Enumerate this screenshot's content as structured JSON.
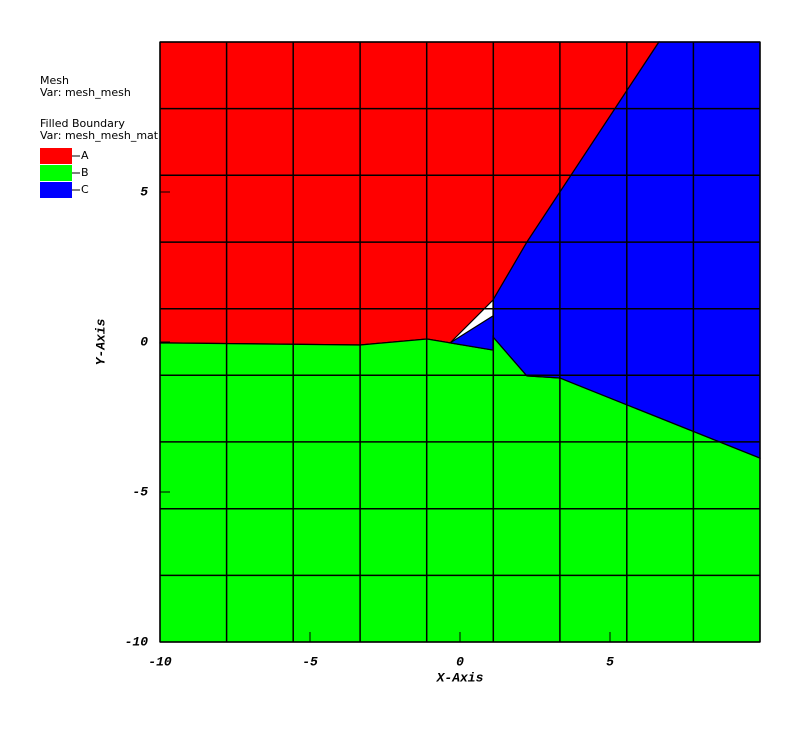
{
  "chart_data": {
    "type": "filled_boundary",
    "legend_title_1": "Mesh",
    "legend_var_1": "Var: mesh_mesh",
    "legend_title_2": "Filled Boundary",
    "legend_var_2": "Var: mesh_mesh_mat",
    "xlabel": "X-Axis",
    "ylabel": "Y-Axis",
    "xlim": [
      -10,
      10
    ],
    "ylim": [
      -10,
      10
    ],
    "xticks": [
      -10,
      -5,
      0,
      5
    ],
    "yticks": [
      -10,
      -5,
      0,
      5
    ],
    "mesh_x": [
      -10,
      -7.78,
      -5.56,
      -3.33,
      -1.11,
      1.11,
      3.33,
      5.56,
      7.78,
      10
    ],
    "mesh_y": [
      -10,
      -7.78,
      -5.56,
      -3.33,
      -1.11,
      1.11,
      3.33,
      5.56,
      7.78,
      10
    ],
    "series": [
      {
        "name": "A",
        "color": "#ff0000",
        "x": [
          -10,
          6.63,
          2.23,
          1.1,
          0.77,
          -0.33,
          -1.1,
          -3.33,
          -10
        ],
        "y": [
          10,
          10,
          3.33,
          1.4,
          1.07,
          -0.03,
          0.1,
          -0.1,
          -0.03
        ]
      },
      {
        "name": "B",
        "color": "#00ff00",
        "x": [
          -10,
          -3.33,
          -1.1,
          1.1,
          1.1,
          2.23,
          3.33,
          10,
          10,
          -10
        ],
        "y": [
          -0.03,
          -0.1,
          0.1,
          -0.27,
          0.17,
          -1.13,
          -1.2,
          -3.87,
          -10,
          -10
        ]
      },
      {
        "name": "C",
        "color": "#0000ff",
        "x": [
          -0.33,
          1.1,
          1.1,
          2.23,
          6.63,
          10,
          10,
          3.33,
          2.23,
          1.1,
          1.1
        ],
        "y": [
          -0.03,
          0.87,
          1.4,
          3.33,
          10,
          10,
          -3.87,
          -1.2,
          -1.13,
          0.17,
          -0.27
        ]
      }
    ]
  }
}
